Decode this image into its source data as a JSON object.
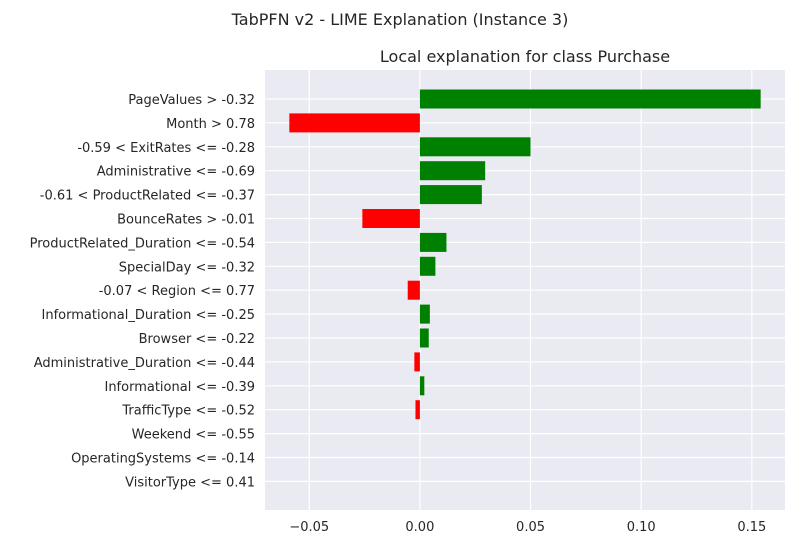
{
  "figure": {
    "suptitle": "TabPFN v2 - LIME Explanation (Instance 3)"
  },
  "chart_data": {
    "type": "bar",
    "orientation": "horizontal",
    "title": "Local explanation for class Purchase",
    "xlabel": "",
    "ylabel": "",
    "xlim": [
      -0.07,
      0.165
    ],
    "xticks": [
      -0.05,
      0.0,
      0.05,
      0.1,
      0.15
    ],
    "xtick_labels": [
      "−0.05",
      "0.00",
      "0.05",
      "0.10",
      "0.15"
    ],
    "grid": true,
    "legend": "none",
    "categories": [
      "PageValues > -0.32",
      "Month > 0.78",
      "-0.59 < ExitRates <= -0.28",
      "Administrative <= -0.69",
      "-0.61 < ProductRelated <= -0.37",
      "BounceRates > -0.01",
      "ProductRelated_Duration <= -0.54",
      "SpecialDay <= -0.32",
      "-0.07 < Region <= 0.77",
      "Informational_Duration <= -0.25",
      "Browser <= -0.22",
      "Administrative_Duration <= -0.44",
      "Informational <= -0.39",
      "TrafficType <= -0.52",
      "Weekend <= -0.55",
      "OperatingSystems <= -0.14",
      "VisitorType <= 0.41"
    ],
    "values": [
      0.154,
      -0.059,
      0.05,
      0.0295,
      0.028,
      -0.026,
      0.012,
      0.007,
      -0.0055,
      0.0045,
      0.004,
      -0.0025,
      0.002,
      -0.002,
      0.0,
      0.0,
      0.0
    ],
    "colors": {
      "positive": "#008000",
      "negative": "#ff0000",
      "plot_background": "#eaeaf2",
      "grid": "#ffffff",
      "text": "#262626"
    }
  }
}
